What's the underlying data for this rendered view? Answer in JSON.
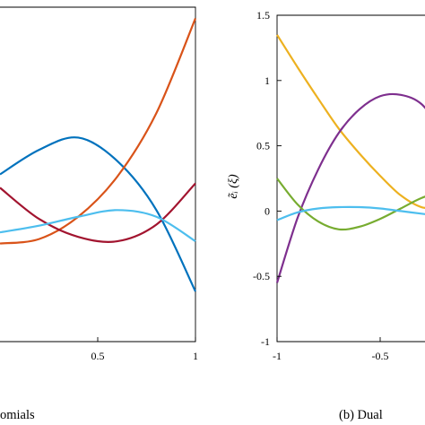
{
  "chart_data": [
    {
      "type": "line",
      "caption": "omials",
      "xlim": [
        0,
        1
      ],
      "x_ticks": [
        "0.5",
        "1"
      ],
      "grid": false,
      "series": [
        {
          "color": "#0072BD",
          "x": [
            0,
            0.2,
            0.4,
            0.6,
            0.8,
            1.0
          ],
          "y": [
            0.5,
            0.72,
            0.83,
            0.62,
            0.18,
            -0.55
          ]
        },
        {
          "color": "#D95319",
          "x": [
            0,
            0.2,
            0.4,
            0.6,
            0.8,
            1.0
          ],
          "y": [
            -0.12,
            -0.08,
            0.12,
            0.48,
            1.05,
            1.9
          ]
        },
        {
          "color": "#A2142F",
          "x": [
            0,
            0.2,
            0.4,
            0.6,
            0.8,
            1.0
          ],
          "y": [
            0.38,
            0.1,
            -0.06,
            -0.1,
            0.05,
            0.42
          ]
        },
        {
          "color": "#4DBEEE",
          "x": [
            0,
            0.2,
            0.4,
            0.6,
            0.8,
            1.0
          ],
          "y": [
            -0.02,
            0.04,
            0.12,
            0.18,
            0.12,
            -0.1
          ]
        }
      ]
    },
    {
      "type": "line",
      "caption": "(b) Dual",
      "ylabel": "ẽᵢ (ξ)",
      "xlim": [
        -1,
        -0.2
      ],
      "ylim": [
        -1,
        1.5
      ],
      "x_ticks": [
        "-1",
        "-0.5"
      ],
      "y_ticks": [
        "1.5",
        "1",
        "0.5",
        "0",
        "-0.5",
        "-1"
      ],
      "grid": false,
      "series": [
        {
          "color": "#EDB120",
          "x": [
            -1,
            -0.9,
            -0.8,
            -0.7,
            -0.6,
            -0.5,
            -0.4,
            -0.3,
            -0.2
          ],
          "y": [
            1.35,
            1.1,
            0.86,
            0.63,
            0.44,
            0.27,
            0.12,
            0.03,
            0.02
          ]
        },
        {
          "color": "#7E2F8E",
          "x": [
            -1,
            -0.9,
            -0.8,
            -0.7,
            -0.6,
            -0.5,
            -0.4,
            -0.3,
            -0.2
          ],
          "y": [
            -0.55,
            -0.05,
            0.32,
            0.6,
            0.78,
            0.88,
            0.89,
            0.82,
            0.62
          ]
        },
        {
          "color": "#77AC30",
          "x": [
            -1,
            -0.9,
            -0.8,
            -0.7,
            -0.6,
            -0.5,
            -0.4,
            -0.3,
            -0.2
          ],
          "y": [
            0.25,
            0.05,
            -0.08,
            -0.14,
            -0.12,
            -0.06,
            0.02,
            0.1,
            0.15
          ]
        },
        {
          "color": "#4DBEEE",
          "x": [
            -1,
            -0.9,
            -0.8,
            -0.7,
            -0.6,
            -0.5,
            -0.4,
            -0.3,
            -0.2
          ],
          "y": [
            -0.07,
            -0.01,
            0.02,
            0.03,
            0.03,
            0.02,
            0.0,
            -0.02,
            -0.04
          ]
        }
      ]
    }
  ]
}
